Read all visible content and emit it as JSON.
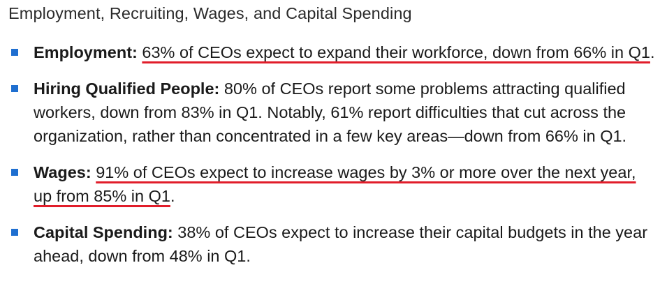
{
  "title": "Employment, Recruiting, Wages, and Capital Spending",
  "accent_colors": {
    "bullet": "#1f6fd0",
    "underline": "#e11d2a"
  },
  "items": [
    {
      "heading": "Employment:",
      "underlined_text": "63% of CEOs expect to expand their workforce, down from 66% in Q1",
      "plain_text": "",
      "suffix": "."
    },
    {
      "heading": "Hiring Qualified People:",
      "underlined_text": "",
      "plain_text": "80% of CEOs report some problems attracting qualified workers, down from 83% in Q1. Notably, 61% report difficulties that cut across the organization, rather than concentrated in a few key areas—down from 66% in Q1.",
      "suffix": ""
    },
    {
      "heading": "Wages:",
      "underlined_text": "91% of CEOs expect to increase wages by 3% or more over the next year, up from 85% in Q1",
      "plain_text": "",
      "suffix": "."
    },
    {
      "heading": "Capital Spending:",
      "underlined_text": "",
      "plain_text": "38% of CEOs expect to increase their capital budgets in the year ahead, down from 48% in Q1.",
      "suffix": ""
    }
  ]
}
